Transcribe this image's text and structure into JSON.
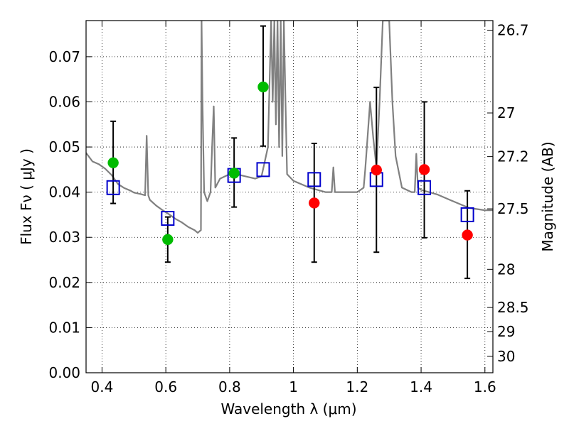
{
  "chart_data": {
    "type": "scatter",
    "title": "",
    "xlabel": "Wavelength  λ (μm)",
    "ylabel": "Flux  Fν  ( μJy )",
    "y2label": "Magnitude (AB)",
    "xlim": [
      0.35,
      1.625
    ],
    "ylim": [
      0.0,
      0.078
    ],
    "grid": true,
    "legend": "none",
    "x_ticks": [
      0.4,
      0.6,
      0.8,
      1.0,
      1.2,
      1.4,
      1.6
    ],
    "x_tick_labels": [
      "0.4",
      "0.6",
      "0.8",
      "1",
      "1.2",
      "1.4",
      "1.6"
    ],
    "y_ticks": [
      0.0,
      0.01,
      0.02,
      0.03,
      0.04,
      0.05,
      0.06,
      0.07
    ],
    "y_tick_labels": [
      "0.00",
      "0.01",
      "0.02",
      "0.03",
      "0.04",
      "0.05",
      "0.06",
      "0.07"
    ],
    "mag_ticks": [
      26.7,
      27,
      27.2,
      27.5,
      28,
      28.5,
      29,
      30
    ],
    "mag_tick_labels": [
      "26.7",
      "27",
      "27.2",
      "27.5",
      "28",
      "28.5",
      "29",
      "30"
    ],
    "colors": {
      "green": "#00bb00",
      "red": "#ff0000",
      "model_box": "#0000cc",
      "spectrum": "#808080",
      "errorbar": "#000000"
    },
    "series": [
      {
        "name": "observed-green",
        "marker": "circle",
        "color": "#00bb00",
        "points": [
          {
            "x": 0.435,
            "y": 0.0465,
            "ylo": 0.0375,
            "yhi": 0.0557
          },
          {
            "x": 0.606,
            "y": 0.0295,
            "ylo": 0.0245,
            "yhi": 0.0345
          },
          {
            "x": 0.814,
            "y": 0.0442,
            "ylo": 0.0367,
            "yhi": 0.052
          },
          {
            "x": 0.905,
            "y": 0.0633,
            "ylo": 0.0502,
            "yhi": 0.0768
          }
        ]
      },
      {
        "name": "observed-red",
        "marker": "circle",
        "color": "#ff0000",
        "points": [
          {
            "x": 1.065,
            "y": 0.0376,
            "ylo": 0.0245,
            "yhi": 0.0508
          },
          {
            "x": 1.26,
            "y": 0.0449,
            "ylo": 0.0267,
            "yhi": 0.0632
          },
          {
            "x": 1.41,
            "y": 0.045,
            "ylo": 0.0299,
            "yhi": 0.06
          },
          {
            "x": 1.545,
            "y": 0.0305,
            "ylo": 0.0209,
            "yhi": 0.0403
          }
        ]
      },
      {
        "name": "model-synthetic",
        "marker": "open-square",
        "color": "#0000cc",
        "points": [
          {
            "x": 0.435,
            "y": 0.041
          },
          {
            "x": 0.606,
            "y": 0.0342
          },
          {
            "x": 0.814,
            "y": 0.0437
          },
          {
            "x": 0.905,
            "y": 0.045
          },
          {
            "x": 1.065,
            "y": 0.0428
          },
          {
            "x": 1.26,
            "y": 0.0428
          },
          {
            "x": 1.41,
            "y": 0.041
          },
          {
            "x": 1.545,
            "y": 0.035
          }
        ]
      }
    ],
    "spectrum": {
      "name": "model-sed",
      "color": "#808080",
      "x": [
        0.35,
        0.37,
        0.39,
        0.41,
        0.43,
        0.45,
        0.47,
        0.49,
        0.5,
        0.52,
        0.535,
        0.54,
        0.545,
        0.55,
        0.57,
        0.59,
        0.61,
        0.63,
        0.65,
        0.67,
        0.69,
        0.7,
        0.71,
        0.712,
        0.715,
        0.72,
        0.725,
        0.73,
        0.74,
        0.745,
        0.75,
        0.755,
        0.77,
        0.8,
        0.82,
        0.85,
        0.88,
        0.9,
        0.92,
        0.93,
        0.935,
        0.94,
        0.945,
        0.95,
        0.955,
        0.96,
        0.965,
        0.97,
        0.975,
        0.98,
        1.0,
        1.05,
        1.1,
        1.12,
        1.125,
        1.13,
        1.14,
        1.2,
        1.22,
        1.225,
        1.23,
        1.24,
        1.25,
        1.26,
        1.27,
        1.28,
        1.3,
        1.31,
        1.32,
        1.34,
        1.37,
        1.38,
        1.385,
        1.39,
        1.4,
        1.45,
        1.5,
        1.55,
        1.6,
        1.625
      ],
      "y": [
        0.0487,
        0.0468,
        0.0462,
        0.0452,
        0.0438,
        0.0418,
        0.0409,
        0.0403,
        0.0399,
        0.0396,
        0.0393,
        0.0525,
        0.0393,
        0.0383,
        0.037,
        0.036,
        0.0351,
        0.0341,
        0.0333,
        0.0323,
        0.0316,
        0.031,
        0.0316,
        0.078,
        0.06,
        0.04,
        0.039,
        0.038,
        0.04,
        0.05,
        0.059,
        0.041,
        0.043,
        0.044,
        0.044,
        0.0435,
        0.043,
        0.0435,
        0.05,
        0.078,
        0.06,
        0.078,
        0.055,
        0.078,
        0.05,
        0.078,
        0.048,
        0.078,
        0.06,
        0.044,
        0.0425,
        0.041,
        0.04,
        0.04,
        0.0455,
        0.04,
        0.04,
        0.04,
        0.041,
        0.045,
        0.05,
        0.06,
        0.052,
        0.0455,
        0.06,
        0.078,
        0.078,
        0.06,
        0.048,
        0.041,
        0.04,
        0.04,
        0.0485,
        0.041,
        0.0405,
        0.0395,
        0.038,
        0.0365,
        0.036,
        0.036
      ]
    }
  }
}
